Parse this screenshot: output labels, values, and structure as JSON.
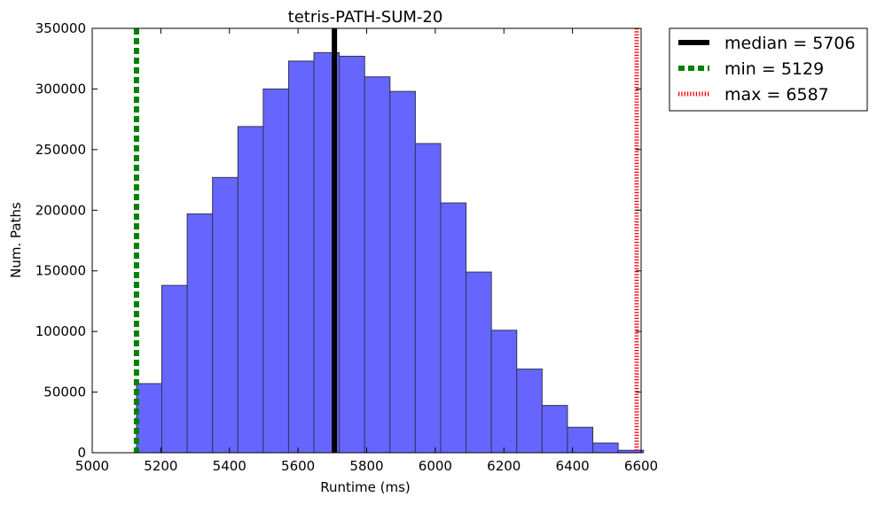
{
  "chart_data": {
    "type": "bar",
    "title": "tetris-PATH-SUM-20",
    "xlabel": "Runtime (ms)",
    "ylabel": "Num. Paths",
    "xlim": [
      5000,
      6600
    ],
    "ylim": [
      0,
      350000
    ],
    "xticks": [
      5000,
      5200,
      5400,
      5600,
      5800,
      6000,
      6200,
      6400,
      6600
    ],
    "yticks": [
      0,
      50000,
      100000,
      150000,
      200000,
      250000,
      300000,
      350000
    ],
    "bin_edges": [
      5129,
      5202.9,
      5276.8,
      5350.7,
      5424.6,
      5498.5,
      5572.4,
      5646.3,
      5720.2,
      5794.1,
      5868,
      5941.9,
      6015.8,
      6089.7,
      6163.6,
      6237.5,
      6311.4,
      6385.3,
      6459.2,
      6533.1,
      6607
    ],
    "values": [
      57000,
      138000,
      197000,
      227000,
      269000,
      300000,
      323000,
      330000,
      327000,
      310000,
      298000,
      255000,
      206000,
      149000,
      101000,
      69000,
      39000,
      21000,
      8000,
      2000
    ],
    "bar_color": "#6666ff",
    "bar_edge_color": "#333355",
    "grid": false,
    "legend_position": "outside-top-right",
    "lines": [
      {
        "label": "median = 5706",
        "x": 5706,
        "color": "#000000",
        "style": "solid"
      },
      {
        "label": "min = 5129",
        "x": 5129,
        "color": "#008000",
        "style": "dashed"
      },
      {
        "label": "max = 6587",
        "x": 6587,
        "color": "#ff0000",
        "style": "dotted"
      }
    ]
  }
}
